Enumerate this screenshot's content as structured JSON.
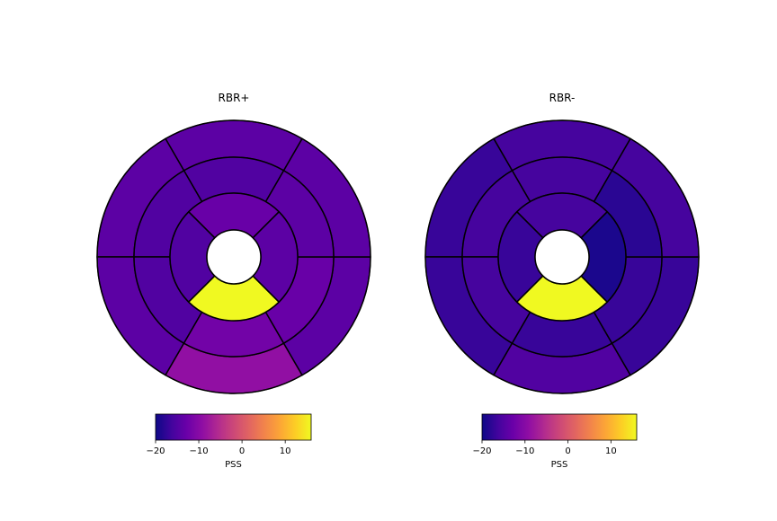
{
  "chart_data": [
    {
      "type": "bullseye-polar",
      "title": "RBR+",
      "colormap": "plasma",
      "value_range": [
        -20,
        16
      ],
      "segments_note": "AHA 17-segment model: ring 1 (basal, 6), ring 2 (mid, 6), ring 3 (apical, 4), center hole",
      "values": {
        "basal": [
          -14,
          -14,
          -14,
          -9,
          -14,
          -14
        ],
        "mid": [
          -15,
          -15,
          -15,
          -12,
          -13,
          -14
        ],
        "apical": [
          -13,
          -15,
          16,
          -14
        ]
      },
      "colorbar": {
        "label": "PSS",
        "ticks": [
          -20,
          -10,
          0,
          10
        ],
        "tick_labels": [
          "−20",
          "−10",
          "0",
          "10"
        ]
      }
    },
    {
      "type": "bullseye-polar",
      "title": "RBR-",
      "colormap": "plasma",
      "value_range": [
        -20,
        16
      ],
      "values": {
        "basal": [
          -16,
          -17,
          -17,
          -15,
          -17,
          -16
        ],
        "mid": [
          -16,
          -16,
          -16,
          -17,
          -17,
          -18
        ],
        "apical": [
          -16,
          -17,
          16,
          -19
        ]
      },
      "colorbar": {
        "label": "PSS",
        "ticks": [
          -20,
          -10,
          0,
          10
        ],
        "tick_labels": [
          "−20",
          "−10",
          "0",
          "10"
        ]
      }
    }
  ]
}
